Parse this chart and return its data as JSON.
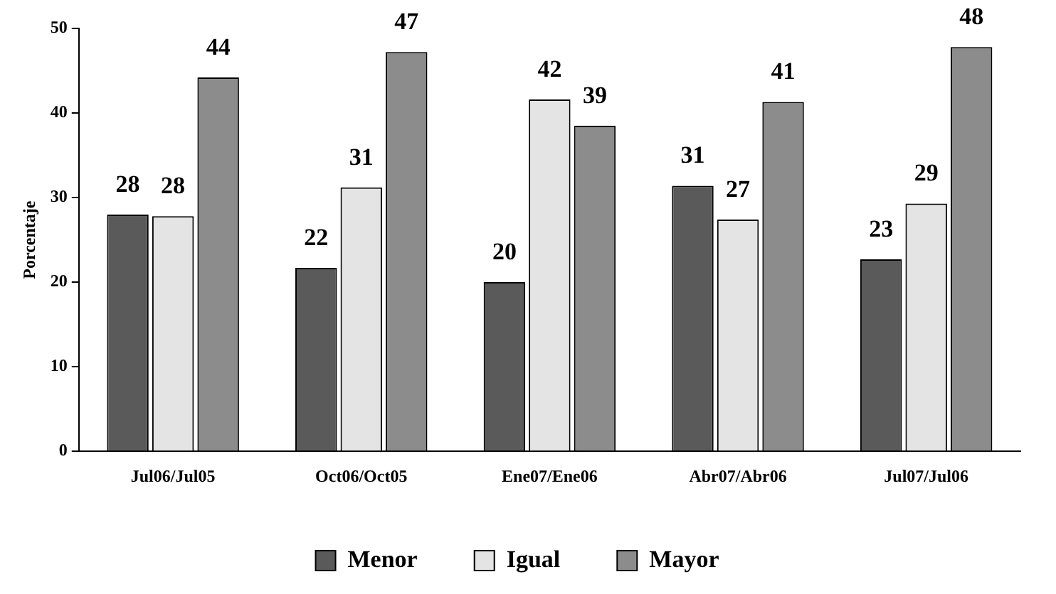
{
  "chart_data": {
    "type": "bar",
    "ylabel": "Porcentaje",
    "categories": [
      "Jul06/Jul05",
      "Oct06/Oct05",
      "Ene07/Ene06",
      "Abr07/Abr06",
      "Jul07/Jul06"
    ],
    "series": [
      {
        "name": "Menor",
        "color": "#5a5a5a",
        "values": [
          28,
          21.7,
          20,
          31.4,
          22.7
        ],
        "value_labels": [
          "28",
          "22",
          "20",
          "31",
          "23"
        ]
      },
      {
        "name": "Igual",
        "color": "#e4e4e4",
        "values": [
          27.8,
          31.2,
          41.6,
          27.4,
          29.3
        ],
        "value_labels": [
          "28",
          "31",
          "42",
          "27",
          "29"
        ]
      },
      {
        "name": "Mayor",
        "color": "#8c8c8c",
        "values": [
          44.2,
          47.2,
          38.5,
          41.3,
          47.8
        ],
        "value_labels": [
          "44",
          "47",
          "39",
          "41",
          "48"
        ]
      }
    ],
    "ylim": [
      0,
      50
    ],
    "yticks": [
      0,
      10,
      20,
      30,
      40,
      50
    ],
    "grid": false,
    "legend": "bottom"
  }
}
